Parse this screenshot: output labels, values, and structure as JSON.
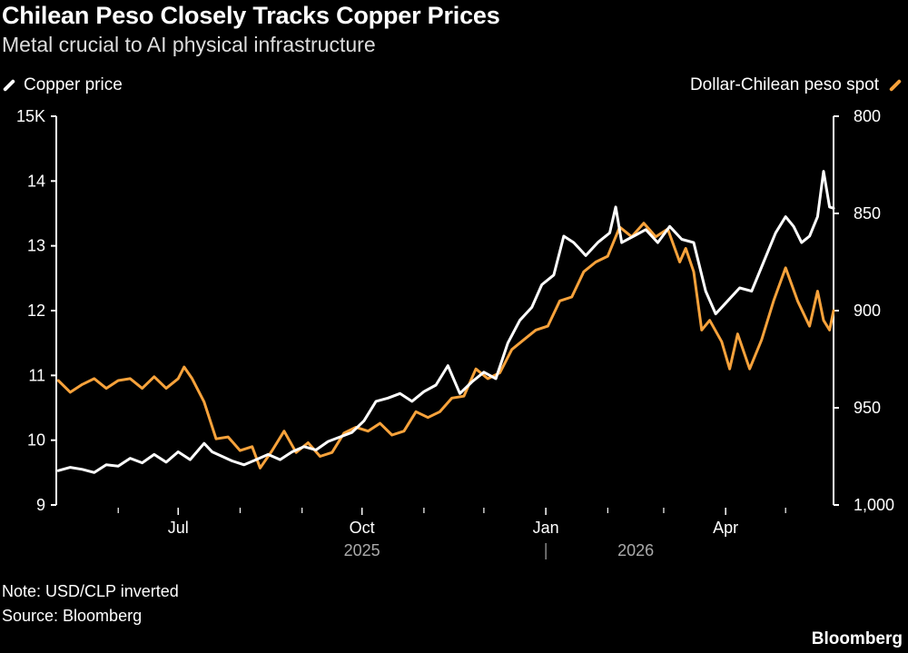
{
  "header": {
    "title": "Chilean Peso Closely Tracks Copper Prices",
    "subtitle": "Metal crucial to AI physical infrastructure"
  },
  "footer": {
    "note": "Note: USD/CLP inverted",
    "source": "Source: Bloomberg",
    "brand": "Bloomberg"
  },
  "colors": {
    "background": "#000000",
    "copper": "#ffffff",
    "peso": "#f7a23b",
    "axis": "#ffffff"
  },
  "chart_data": {
    "type": "line",
    "grid": false,
    "x_range": [
      "2025-05-01",
      "2026-05-25"
    ],
    "x_ticks": [
      {
        "date": "2025-07-01",
        "label": "Jul"
      },
      {
        "date": "2025-10-01",
        "label": "Oct"
      },
      {
        "date": "2026-01-01",
        "label": "Jan"
      },
      {
        "date": "2026-04-01",
        "label": "Apr"
      }
    ],
    "x_minor_ticks": [
      "2025-06-01",
      "2025-08-01",
      "2025-09-01",
      "2025-11-01",
      "2025-12-01",
      "2026-02-01",
      "2026-03-01",
      "2026-05-01"
    ],
    "year_labels": [
      {
        "date": "2025-10-01",
        "label": "2025"
      },
      {
        "date": "2026-02-15",
        "label": "2026"
      }
    ],
    "year_divider": "2026-01-01",
    "y_left": {
      "series": "Copper price",
      "range": [
        9,
        15
      ],
      "ticks": [
        9,
        10,
        11,
        12,
        13,
        14,
        15
      ],
      "tick_labels": [
        "9",
        "10",
        "11",
        "12",
        "13",
        "14",
        "15K"
      ]
    },
    "y_right": {
      "series": "Dollar-Chilean peso spot",
      "range": [
        800,
        1000
      ],
      "inverted": true,
      "ticks": [
        800,
        850,
        900,
        950,
        1000
      ],
      "tick_labels": [
        "800",
        "850",
        "900",
        "950",
        "1,000"
      ]
    },
    "legend_placement": "top",
    "series": [
      {
        "name": "Copper price",
        "axis": "left",
        "color": "#ffffff",
        "points": [
          [
            "2025-05-02",
            9.53
          ],
          [
            "2025-05-08",
            9.58
          ],
          [
            "2025-05-14",
            9.55
          ],
          [
            "2025-05-20",
            9.5
          ],
          [
            "2025-05-26",
            9.62
          ],
          [
            "2025-06-01",
            9.6
          ],
          [
            "2025-06-07",
            9.72
          ],
          [
            "2025-06-13",
            9.65
          ],
          [
            "2025-06-19",
            9.78
          ],
          [
            "2025-06-25",
            9.66
          ],
          [
            "2025-07-01",
            9.82
          ],
          [
            "2025-07-07",
            9.7
          ],
          [
            "2025-07-14",
            9.95
          ],
          [
            "2025-07-18",
            9.82
          ],
          [
            "2025-07-23",
            9.75
          ],
          [
            "2025-07-28",
            9.68
          ],
          [
            "2025-08-03",
            9.62
          ],
          [
            "2025-08-09",
            9.7
          ],
          [
            "2025-08-15",
            9.78
          ],
          [
            "2025-08-21",
            9.7
          ],
          [
            "2025-08-27",
            9.82
          ],
          [
            "2025-09-02",
            9.9
          ],
          [
            "2025-09-08",
            9.85
          ],
          [
            "2025-09-14",
            9.98
          ],
          [
            "2025-09-20",
            10.05
          ],
          [
            "2025-09-26",
            10.12
          ],
          [
            "2025-10-02",
            10.3
          ],
          [
            "2025-10-08",
            10.6
          ],
          [
            "2025-10-14",
            10.65
          ],
          [
            "2025-10-20",
            10.72
          ],
          [
            "2025-10-26",
            10.6
          ],
          [
            "2025-11-01",
            10.75
          ],
          [
            "2025-11-07",
            10.85
          ],
          [
            "2025-11-13",
            11.15
          ],
          [
            "2025-11-19",
            10.72
          ],
          [
            "2025-11-25",
            10.9
          ],
          [
            "2025-12-01",
            11.05
          ],
          [
            "2025-12-07",
            10.95
          ],
          [
            "2025-12-13",
            11.5
          ],
          [
            "2025-12-19",
            11.85
          ],
          [
            "2025-12-25",
            12.05
          ],
          [
            "2025-12-30",
            12.4
          ],
          [
            "2026-01-05",
            12.55
          ],
          [
            "2026-01-10",
            13.15
          ],
          [
            "2026-01-15",
            13.05
          ],
          [
            "2026-01-21",
            12.85
          ],
          [
            "2026-01-27",
            13.05
          ],
          [
            "2026-02-02",
            13.2
          ],
          [
            "2026-02-05",
            13.6
          ],
          [
            "2026-02-08",
            13.05
          ],
          [
            "2026-02-14",
            13.15
          ],
          [
            "2026-02-20",
            13.25
          ],
          [
            "2026-02-26",
            13.05
          ],
          [
            "2026-03-04",
            13.3
          ],
          [
            "2026-03-10",
            13.1
          ],
          [
            "2026-03-16",
            13.05
          ],
          [
            "2026-03-22",
            12.3
          ],
          [
            "2026-03-27",
            11.95
          ],
          [
            "2026-04-02",
            12.15
          ],
          [
            "2026-04-08",
            12.35
          ],
          [
            "2026-04-14",
            12.3
          ],
          [
            "2026-04-20",
            12.75
          ],
          [
            "2026-04-26",
            13.2
          ],
          [
            "2026-05-01",
            13.45
          ],
          [
            "2026-05-05",
            13.3
          ],
          [
            "2026-05-09",
            13.05
          ],
          [
            "2026-05-13",
            13.15
          ],
          [
            "2026-05-17",
            13.45
          ],
          [
            "2026-05-20",
            14.15
          ],
          [
            "2026-05-23",
            13.6
          ],
          [
            "2026-05-25",
            13.58
          ]
        ]
      },
      {
        "name": "Dollar-Chilean peso spot",
        "axis": "right",
        "color": "#f7a23b",
        "points": [
          [
            "2025-05-02",
            936
          ],
          [
            "2025-05-08",
            942
          ],
          [
            "2025-05-14",
            938
          ],
          [
            "2025-05-20",
            935
          ],
          [
            "2025-05-26",
            940
          ],
          [
            "2025-06-01",
            936
          ],
          [
            "2025-06-07",
            935
          ],
          [
            "2025-06-13",
            940
          ],
          [
            "2025-06-19",
            934
          ],
          [
            "2025-06-25",
            940
          ],
          [
            "2025-07-01",
            935
          ],
          [
            "2025-07-04",
            929
          ],
          [
            "2025-07-08",
            935
          ],
          [
            "2025-07-14",
            947
          ],
          [
            "2025-07-20",
            966
          ],
          [
            "2025-07-26",
            965
          ],
          [
            "2025-08-01",
            972
          ],
          [
            "2025-08-07",
            970
          ],
          [
            "2025-08-11",
            981
          ],
          [
            "2025-08-17",
            972
          ],
          [
            "2025-08-23",
            962
          ],
          [
            "2025-08-29",
            973
          ],
          [
            "2025-09-04",
            968
          ],
          [
            "2025-09-10",
            975
          ],
          [
            "2025-09-16",
            973
          ],
          [
            "2025-09-22",
            963
          ],
          [
            "2025-09-28",
            960
          ],
          [
            "2025-10-04",
            962
          ],
          [
            "2025-10-10",
            958
          ],
          [
            "2025-10-16",
            964
          ],
          [
            "2025-10-22",
            962
          ],
          [
            "2025-10-28",
            952
          ],
          [
            "2025-11-03",
            955
          ],
          [
            "2025-11-09",
            952
          ],
          [
            "2025-11-15",
            945
          ],
          [
            "2025-11-21",
            944
          ],
          [
            "2025-11-27",
            930
          ],
          [
            "2025-12-03",
            935
          ],
          [
            "2025-12-09",
            932
          ],
          [
            "2025-12-15",
            920
          ],
          [
            "2025-12-21",
            915
          ],
          [
            "2025-12-27",
            910
          ],
          [
            "2026-01-02",
            908
          ],
          [
            "2026-01-08",
            895
          ],
          [
            "2026-01-14",
            893
          ],
          [
            "2026-01-20",
            880
          ],
          [
            "2026-01-26",
            875
          ],
          [
            "2026-02-01",
            872
          ],
          [
            "2026-02-07",
            857
          ],
          [
            "2026-02-13",
            862
          ],
          [
            "2026-02-19",
            855
          ],
          [
            "2026-02-25",
            862
          ],
          [
            "2026-03-03",
            858
          ],
          [
            "2026-03-09",
            875
          ],
          [
            "2026-03-12",
            868
          ],
          [
            "2026-03-16",
            880
          ],
          [
            "2026-03-20",
            910
          ],
          [
            "2026-03-24",
            905
          ],
          [
            "2026-03-30",
            916
          ],
          [
            "2026-04-03",
            930
          ],
          [
            "2026-04-07",
            912
          ],
          [
            "2026-04-13",
            930
          ],
          [
            "2026-04-19",
            915
          ],
          [
            "2026-04-25",
            895
          ],
          [
            "2026-05-01",
            878
          ],
          [
            "2026-05-07",
            895
          ],
          [
            "2026-05-13",
            908
          ],
          [
            "2026-05-17",
            890
          ],
          [
            "2026-05-20",
            905
          ],
          [
            "2026-05-23",
            910
          ],
          [
            "2026-05-25",
            900
          ]
        ]
      }
    ]
  }
}
